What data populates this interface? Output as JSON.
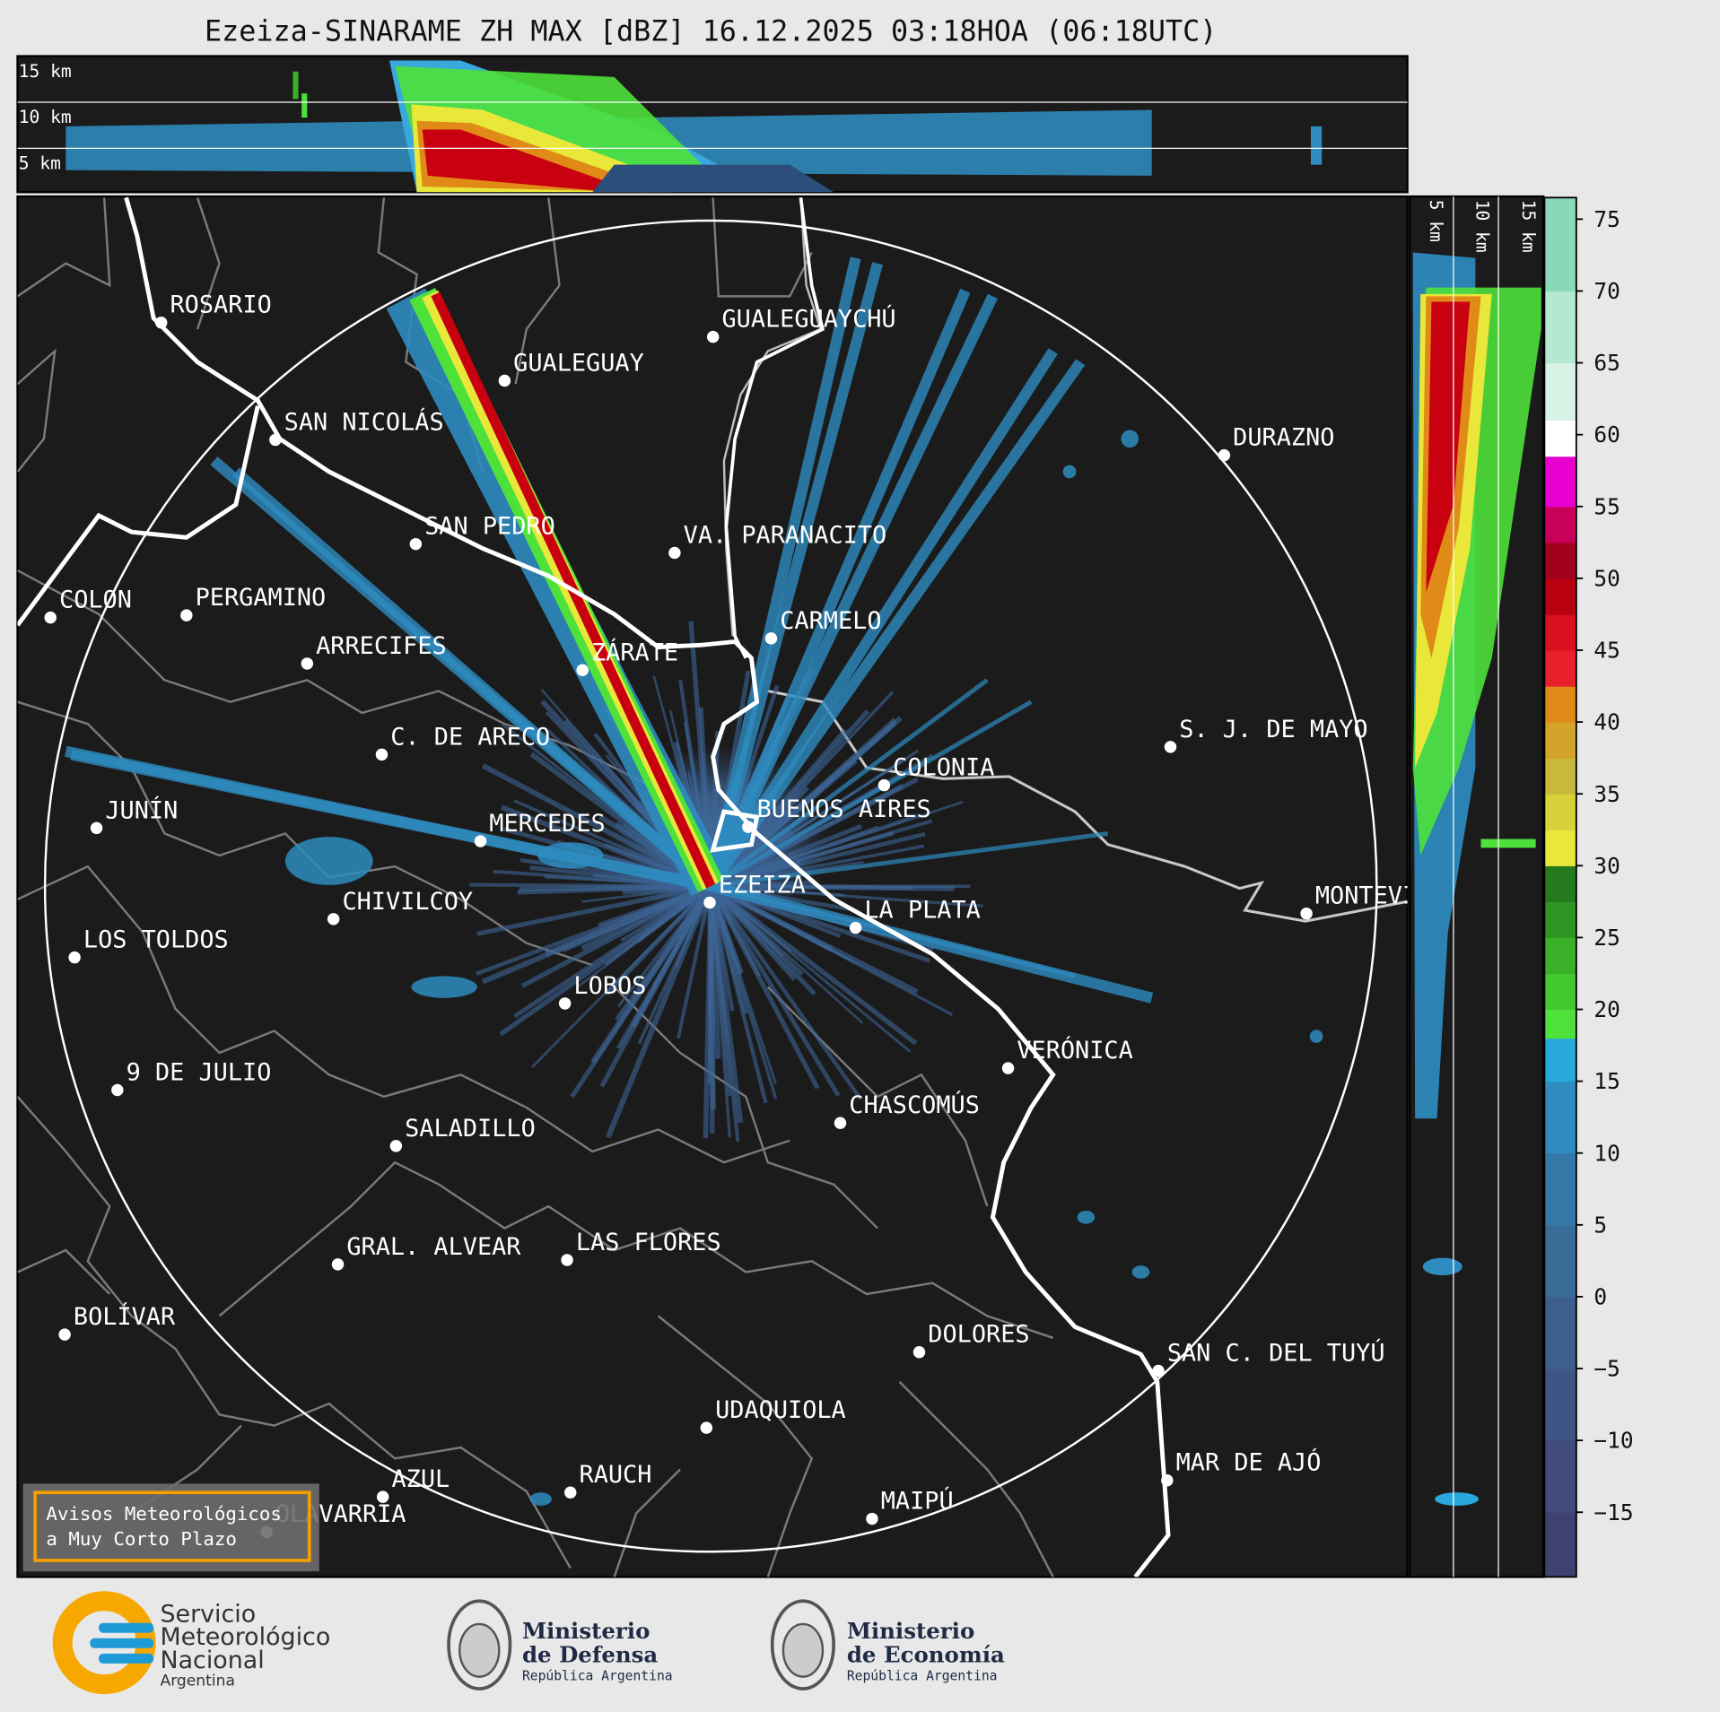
{
  "title": "Ezeiza-SINARAME ZH MAX [dBZ] 16.12.2025 03:18HOA (06:18UTC)",
  "height_labels": [
    "15 km",
    "10 km",
    "5 km"
  ],
  "side_height_labels": [
    "5 km",
    "10 km",
    "15 km"
  ],
  "cities": [
    "ROSARIO",
    "GUALEGUAYCHÚ",
    "GUALEGUAY",
    "SAN NICOLÁS",
    "DURAZNO",
    "SAN PEDRO",
    "VA. PARANACITO",
    "COLON",
    "PERGAMINO",
    "CARMELO",
    "ARRECIFES",
    "ZÁRATE",
    "S. J. DE MAYO",
    "C. DE ARECO",
    "COLONIA",
    "JUNÍN",
    "BUENOS AIRES",
    "MERCEDES",
    "MONTEVIDEO",
    "EZEIZA",
    "CHIVILCOY",
    "LA PLATA",
    "LOS TOLDOS",
    "LOBOS",
    "VERÓNICA",
    "9 DE JULIO",
    "CHASCOMÚS",
    "SALADILLO",
    "GRAL. ALVEAR",
    "LAS FLORES",
    "BOLÍVAR",
    "DOLORES",
    "SAN C. DEL TUYÚ",
    "UDAQUIOLA",
    "MAR DE AJÓ",
    "AZUL",
    "RAUCH",
    "OLAVARRÍA",
    "MAIPÚ"
  ],
  "notice": [
    "Avisos Meteorológicos",
    "a Muy Corto Plazo"
  ],
  "colorbar": {
    "lim": [
      -19.5,
      76.5
    ],
    "ticks": [
      75,
      70,
      65,
      60,
      55,
      50,
      45,
      40,
      35,
      30,
      25,
      20,
      15,
      10,
      5,
      0,
      {
        "value": -5,
        "label": "−5"
      },
      {
        "value": -10,
        "label": "−10"
      },
      {
        "value": -15,
        "label": "−15"
      }
    ],
    "boundaries": [
      -19.5,
      -15,
      -10,
      -5,
      0,
      5,
      10,
      15,
      18,
      20,
      22.5,
      25,
      27.5,
      30,
      32.5,
      35,
      37.5,
      40,
      42.5,
      45,
      47.5,
      50,
      52.5,
      55,
      58.5,
      61,
      65,
      70,
      76.5
    ],
    "colors": [
      "#3e4270",
      "#414b7c",
      "#3f5585",
      "#3c5f8e",
      "#3a6c98",
      "#3579a8",
      "#2e8cc0",
      "#29a8dc",
      "#4ee13a",
      "#43c82f",
      "#3ab028",
      "#2f9624",
      "#267a1e",
      "#e9e83a",
      "#d8d23a",
      "#c9b93a",
      "#d4a32a",
      "#e08a18",
      "#e8202c",
      "#d8101e",
      "#b80010",
      "#a0001c",
      "#c8005a",
      "#e800d0",
      "#ffffff",
      "#d8f2e6",
      "#b4e8d0",
      "#8ad8b8"
    ]
  },
  "logos": {
    "smn": [
      "Servicio",
      "Meteorológico",
      "Nacional",
      "Argentina"
    ],
    "defensa": {
      "title": [
        "Ministerio",
        "de Defensa"
      ],
      "subtitle": "República Argentina"
    },
    "economia": {
      "title": [
        "Ministerio",
        "de Economía"
      ],
      "subtitle": "República Argentina"
    }
  }
}
